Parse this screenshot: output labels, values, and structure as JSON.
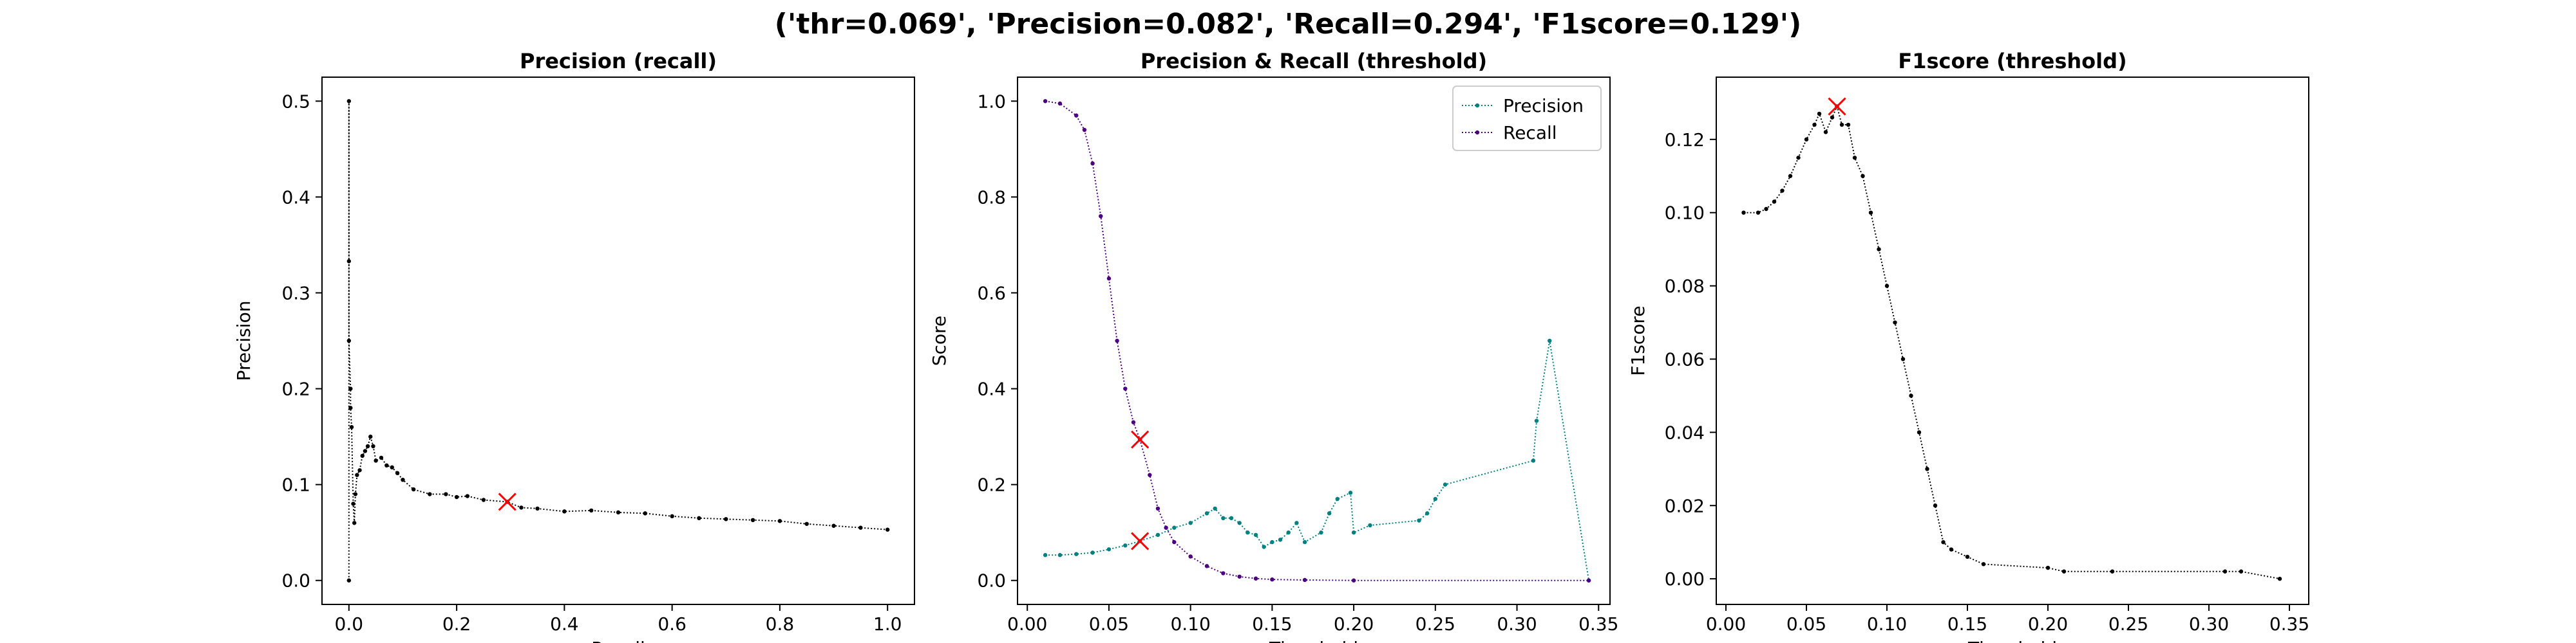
{
  "suptitle": "('thr=0.069', 'Precision=0.082', 'Recall=0.294', 'F1score=0.129')",
  "colors": {
    "precision": "#008080",
    "recall": "#4b0082",
    "f1": "#000000",
    "marker": "#ff0000",
    "pr_curve": "#000000"
  },
  "chart_data": [
    {
      "type": "line",
      "title": "Precision (recall)",
      "xlabel": "Recall",
      "ylabel": "Precision",
      "xlim": [
        -0.05,
        1.05
      ],
      "ylim": [
        -0.025,
        0.525
      ],
      "xticks": [
        "0.0",
        "0.2",
        "0.4",
        "0.6",
        "0.8",
        "1.0"
      ],
      "yticks": [
        "0.0",
        "0.1",
        "0.2",
        "0.3",
        "0.4",
        "0.5"
      ],
      "grid": false,
      "series": [
        {
          "style": "dotted",
          "color": "pr_curve",
          "points": [
            [
              0.0,
              0.0
            ],
            [
              0.0,
              0.5
            ],
            [
              0.0,
              0.333
            ],
            [
              0.0,
              0.25
            ],
            [
              0.003,
              0.2
            ],
            [
              0.003,
              0.18
            ],
            [
              0.005,
              0.16
            ],
            [
              0.008,
              0.08
            ],
            [
              0.01,
              0.06
            ],
            [
              0.012,
              0.09
            ],
            [
              0.015,
              0.11
            ],
            [
              0.02,
              0.115
            ],
            [
              0.025,
              0.13
            ],
            [
              0.03,
              0.135
            ],
            [
              0.035,
              0.14
            ],
            [
              0.04,
              0.15
            ],
            [
              0.045,
              0.14
            ],
            [
              0.05,
              0.125
            ],
            [
              0.06,
              0.128
            ],
            [
              0.07,
              0.12
            ],
            [
              0.08,
              0.118
            ],
            [
              0.09,
              0.112
            ],
            [
              0.1,
              0.105
            ],
            [
              0.12,
              0.095
            ],
            [
              0.15,
              0.09
            ],
            [
              0.18,
              0.09
            ],
            [
              0.2,
              0.087
            ],
            [
              0.22,
              0.088
            ],
            [
              0.25,
              0.084
            ],
            [
              0.294,
              0.082
            ],
            [
              0.32,
              0.076
            ],
            [
              0.35,
              0.075
            ],
            [
              0.4,
              0.072
            ],
            [
              0.45,
              0.073
            ],
            [
              0.5,
              0.071
            ],
            [
              0.55,
              0.07
            ],
            [
              0.6,
              0.067
            ],
            [
              0.65,
              0.065
            ],
            [
              0.7,
              0.064
            ],
            [
              0.75,
              0.063
            ],
            [
              0.8,
              0.062
            ],
            [
              0.85,
              0.059
            ],
            [
              0.9,
              0.057
            ],
            [
              0.95,
              0.055
            ],
            [
              1.0,
              0.053
            ]
          ]
        }
      ],
      "markers": [
        {
          "x": 0.294,
          "y": 0.082
        }
      ]
    },
    {
      "type": "line",
      "title": "Precision & Recall (threshold)",
      "xlabel": "Threshold",
      "ylabel": "Score",
      "xlim": [
        -0.006,
        0.357
      ],
      "ylim": [
        -0.05,
        1.05
      ],
      "xticks": [
        "0.00",
        "0.05",
        "0.10",
        "0.15",
        "0.20",
        "0.25",
        "0.30",
        "0.35"
      ],
      "yticks": [
        "0.0",
        "0.2",
        "0.4",
        "0.6",
        "0.8",
        "1.0"
      ],
      "grid": false,
      "legend": "upper-right",
      "series": [
        {
          "name": "Precision",
          "style": "dotted",
          "color": "precision",
          "points": [
            [
              0.011,
              0.053
            ],
            [
              0.02,
              0.053
            ],
            [
              0.03,
              0.055
            ],
            [
              0.04,
              0.058
            ],
            [
              0.05,
              0.065
            ],
            [
              0.06,
              0.073
            ],
            [
              0.069,
              0.082
            ],
            [
              0.08,
              0.095
            ],
            [
              0.09,
              0.11
            ],
            [
              0.1,
              0.12
            ],
            [
              0.11,
              0.14
            ],
            [
              0.115,
              0.15
            ],
            [
              0.12,
              0.13
            ],
            [
              0.125,
              0.13
            ],
            [
              0.13,
              0.12
            ],
            [
              0.135,
              0.1
            ],
            [
              0.14,
              0.095
            ],
            [
              0.145,
              0.07
            ],
            [
              0.15,
              0.08
            ],
            [
              0.155,
              0.085
            ],
            [
              0.16,
              0.1
            ],
            [
              0.165,
              0.12
            ],
            [
              0.17,
              0.08
            ],
            [
              0.18,
              0.1
            ],
            [
              0.185,
              0.14
            ],
            [
              0.19,
              0.17
            ],
            [
              0.198,
              0.183
            ],
            [
              0.2,
              0.1
            ],
            [
              0.21,
              0.115
            ],
            [
              0.24,
              0.125
            ],
            [
              0.245,
              0.14
            ],
            [
              0.25,
              0.17
            ],
            [
              0.256,
              0.2
            ],
            [
              0.31,
              0.25
            ],
            [
              0.312,
              0.333
            ],
            [
              0.32,
              0.5
            ],
            [
              0.344,
              0.0
            ]
          ]
        },
        {
          "name": "Recall",
          "style": "dotted",
          "color": "recall",
          "points": [
            [
              0.011,
              1.0
            ],
            [
              0.02,
              0.995
            ],
            [
              0.03,
              0.97
            ],
            [
              0.035,
              0.94
            ],
            [
              0.04,
              0.87
            ],
            [
              0.045,
              0.76
            ],
            [
              0.05,
              0.63
            ],
            [
              0.055,
              0.5
            ],
            [
              0.06,
              0.4
            ],
            [
              0.065,
              0.33
            ],
            [
              0.069,
              0.294
            ],
            [
              0.075,
              0.22
            ],
            [
              0.08,
              0.15
            ],
            [
              0.085,
              0.11
            ],
            [
              0.09,
              0.08
            ],
            [
              0.1,
              0.05
            ],
            [
              0.11,
              0.03
            ],
            [
              0.12,
              0.015
            ],
            [
              0.13,
              0.008
            ],
            [
              0.14,
              0.004
            ],
            [
              0.15,
              0.002
            ],
            [
              0.17,
              0.001
            ],
            [
              0.2,
              0.0
            ],
            [
              0.344,
              0.0
            ]
          ]
        }
      ],
      "markers": [
        {
          "x": 0.069,
          "y": 0.294
        },
        {
          "x": 0.069,
          "y": 0.082
        }
      ]
    },
    {
      "type": "line",
      "title": "F1score (threshold)",
      "xlabel": "Threshold",
      "ylabel": "F1score",
      "xlim": [
        -0.006,
        0.362
      ],
      "ylim": [
        -0.007,
        0.137
      ],
      "xticks": [
        "0.00",
        "0.05",
        "0.10",
        "0.15",
        "0.20",
        "0.25",
        "0.30",
        "0.35"
      ],
      "yticks": [
        "0.00",
        "0.02",
        "0.04",
        "0.06",
        "0.08",
        "0.10",
        "0.12"
      ],
      "grid": false,
      "series": [
        {
          "style": "dotted",
          "color": "f1",
          "points": [
            [
              0.011,
              0.1
            ],
            [
              0.02,
              0.1
            ],
            [
              0.025,
              0.101
            ],
            [
              0.03,
              0.103
            ],
            [
              0.035,
              0.106
            ],
            [
              0.04,
              0.11
            ],
            [
              0.045,
              0.115
            ],
            [
              0.05,
              0.12
            ],
            [
              0.055,
              0.124
            ],
            [
              0.058,
              0.127
            ],
            [
              0.062,
              0.122
            ],
            [
              0.066,
              0.126
            ],
            [
              0.069,
              0.129
            ],
            [
              0.072,
              0.124
            ],
            [
              0.076,
              0.124
            ],
            [
              0.08,
              0.115
            ],
            [
              0.085,
              0.11
            ],
            [
              0.09,
              0.1
            ],
            [
              0.095,
              0.09
            ],
            [
              0.1,
              0.08
            ],
            [
              0.105,
              0.07
            ],
            [
              0.11,
              0.06
            ],
            [
              0.115,
              0.05
            ],
            [
              0.12,
              0.04
            ],
            [
              0.125,
              0.03
            ],
            [
              0.13,
              0.02
            ],
            [
              0.135,
              0.01
            ],
            [
              0.14,
              0.008
            ],
            [
              0.15,
              0.006
            ],
            [
              0.16,
              0.004
            ],
            [
              0.2,
              0.003
            ],
            [
              0.21,
              0.002
            ],
            [
              0.24,
              0.002
            ],
            [
              0.31,
              0.002
            ],
            [
              0.32,
              0.002
            ],
            [
              0.344,
              0.0
            ]
          ]
        }
      ],
      "markers": [
        {
          "x": 0.069,
          "y": 0.129
        }
      ]
    }
  ]
}
